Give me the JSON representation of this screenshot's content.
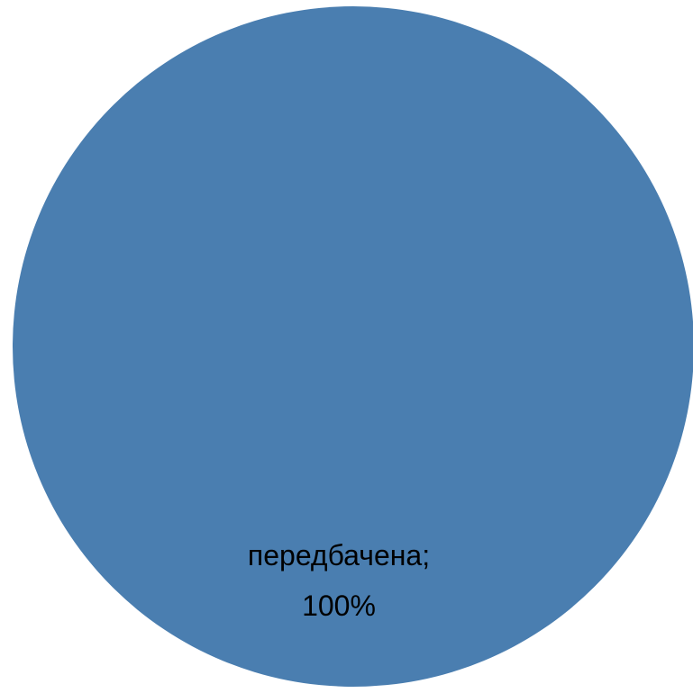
{
  "chart_data": {
    "type": "pie",
    "title": "",
    "slices": [
      {
        "name": "передбачена",
        "value": 100,
        "percent": "100%",
        "label_line1": "передбачена;",
        "label_line2": "100%",
        "color": "#4A7EB0"
      }
    ],
    "legend": "none"
  }
}
